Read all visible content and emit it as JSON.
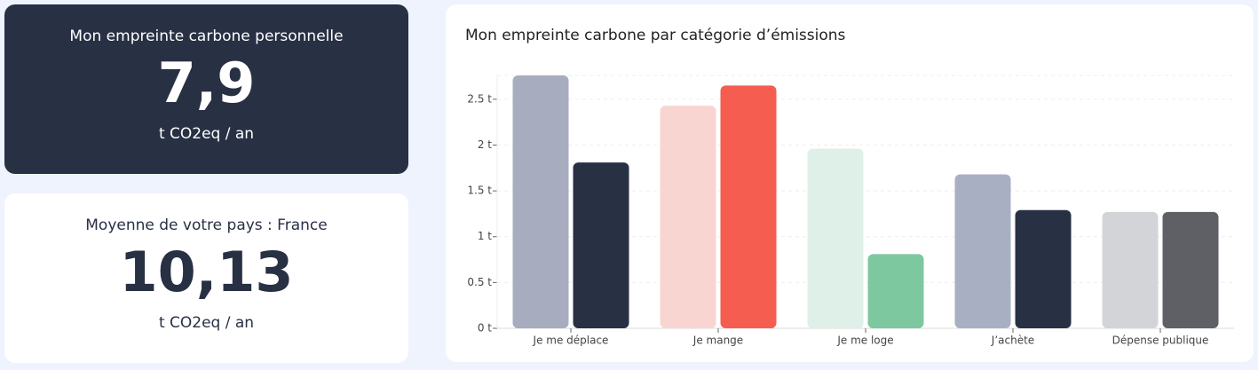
{
  "cards": [
    {
      "title": "Mon empreinte carbone personnelle",
      "value": "7,9",
      "unit": "t CO2eq / an"
    },
    {
      "title": "Moyenne de votre pays : France",
      "value": "10,13",
      "unit": "t CO2eq / an"
    }
  ],
  "chart_data": {
    "type": "bar",
    "title": "Mon empreinte carbone par catégorie d’émissions",
    "categories": [
      "Je me déplace",
      "Je mange",
      "Je me loge",
      "J’achète",
      "Dépense publique"
    ],
    "series": [
      {
        "colors": [
          "#a7adbf",
          "#f9d5d1",
          "#def0e8",
          "#a9afc3",
          "#d3d4d8"
        ],
        "values": [
          2.76,
          2.43,
          1.96,
          1.68,
          1.27
        ]
      },
      {
        "colors": [
          "#283044",
          "#f55d50",
          "#7ec8a0",
          "#283044",
          "#5f6066"
        ],
        "values": [
          1.81,
          2.65,
          0.81,
          1.29,
          1.27
        ]
      }
    ],
    "ylim": [
      0,
      2.76
    ],
    "yticks": [
      {
        "value": 0,
        "label": "0 t"
      },
      {
        "value": 0.5,
        "label": "0.5 t"
      },
      {
        "value": 1,
        "label": "1 t"
      },
      {
        "value": 1.5,
        "label": "1.5 t"
      },
      {
        "value": 2,
        "label": "2 t"
      },
      {
        "value": 2.5,
        "label": "2.5 t"
      }
    ],
    "grid": true
  }
}
